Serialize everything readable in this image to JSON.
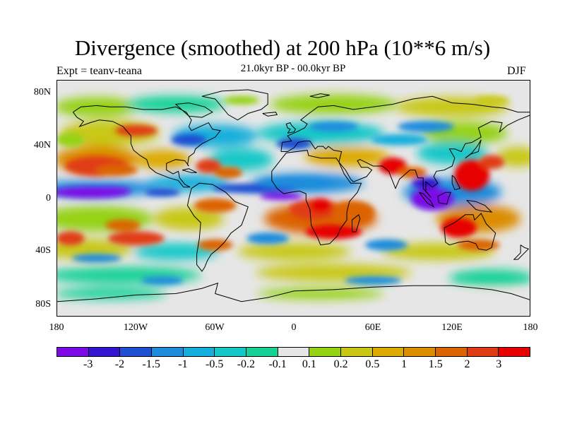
{
  "header": {
    "title": "Divergence (smoothed) at 200 hPa (10**6 m/s)",
    "experiment": "Expt = teanv-teana",
    "period": "21.0kyr BP - 00.0kyr BP",
    "season": "DJF"
  },
  "map": {
    "background_color": "#e6e6e6",
    "lat_ticks": [
      "80N",
      "40N",
      "0",
      "40S",
      "80S"
    ],
    "lat_values": [
      80,
      40,
      0,
      -40,
      -80
    ],
    "lon_ticks": [
      "180",
      "120W",
      "60W",
      "0",
      "60E",
      "120E",
      "180"
    ],
    "lon_values": [
      -180,
      -120,
      -60,
      0,
      60,
      120,
      180
    ],
    "lat_range": [
      -90,
      90
    ],
    "lon_range": [
      -180,
      180
    ]
  },
  "colorbar": {
    "colors": [
      "#7d0ae6",
      "#3214d2",
      "#1e50d2",
      "#1e8cdc",
      "#14afdc",
      "#14c8c8",
      "#14d296",
      "#e6e6e6",
      "#96d214",
      "#c8c814",
      "#dcaa00",
      "#dc8c00",
      "#dc6400",
      "#e03c14",
      "#e60000"
    ],
    "labels": [
      "-3",
      "-2",
      "-1.5",
      "-1",
      "-0.5",
      "-0.2",
      "-0.1",
      "0.1",
      "0.2",
      "0.5",
      "1",
      "1.5",
      "2",
      "3"
    ],
    "levels": [
      -3,
      -2,
      -1.5,
      -1,
      -0.5,
      -0.2,
      -0.1,
      0.1,
      0.2,
      0.5,
      1,
      1.5,
      2,
      3
    ]
  }
}
